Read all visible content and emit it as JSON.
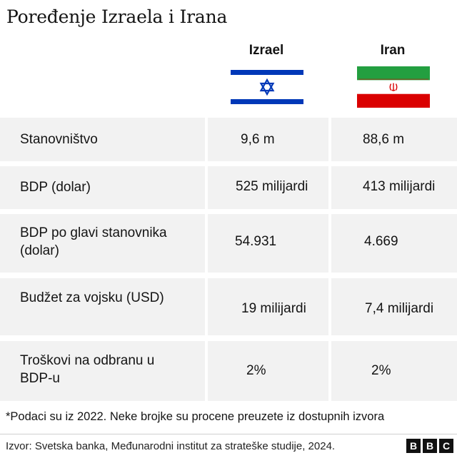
{
  "title": "Poređenje Izraela i Irana",
  "columns": {
    "israel": "Izrael",
    "iran": "Iran"
  },
  "flags": {
    "israel": "israel-flag-icon",
    "iran": "iran-flag-icon"
  },
  "rows": [
    {
      "label_line1": "Stanovništvo",
      "label_line2": "",
      "israel": "9,6 m",
      "iran": "88,6 m"
    },
    {
      "label_line1": "BDP (dolar)",
      "label_line2": "",
      "israel": "525 milijardi",
      "iran": "413 milijardi"
    },
    {
      "label_line1": "BDP po glavi stanovnika",
      "label_line2": "(dolar)",
      "israel": "54.931",
      "iran": "4.669"
    },
    {
      "label_line1": "Budžet za vojsku (USD)",
      "label_line2": "",
      "israel": "19 milijardi",
      "iran": "7,4 milijardi"
    },
    {
      "label_line1": "Troškovi na odbranu u",
      "label_line2": "BDP-u",
      "israel": "2%",
      "iran": "2%"
    }
  ],
  "footnote": "*Podaci su iz 2022. Neke brojke su procene preuzete iz dostupnih izvora",
  "source": "Izvor: Svetska banka, Međunarodni institut za strateške studije, 2024.",
  "logo": [
    "B",
    "B",
    "C"
  ],
  "colors": {
    "cell_background": "#f2f2f2",
    "israel_blue": "#0038b8",
    "iran_green": "#239f40",
    "iran_red": "#da0000"
  }
}
